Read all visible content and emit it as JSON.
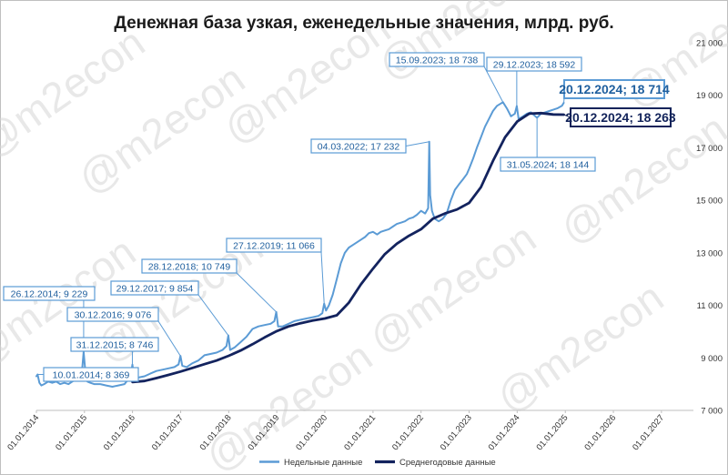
{
  "watermark": "@m2econ",
  "chart_data": {
    "type": "line",
    "title": "Денежная база узкая, еженедельные значения, млрд. руб.",
    "xlabel": "",
    "ylabel": "",
    "xlim": [
      "2014-01-01",
      "2027-09-01"
    ],
    "ylim": [
      7000,
      21000
    ],
    "y_ticks": [
      7000,
      9000,
      11000,
      13000,
      15000,
      17000,
      19000,
      21000
    ],
    "y_tick_labels": [
      "7 000",
      "9 000",
      "11 000",
      "13 000",
      "15 000",
      "17 000",
      "19 000",
      "21 000"
    ],
    "x_ticks": [
      "2014-01-01",
      "2015-01-01",
      "2016-01-01",
      "2017-01-01",
      "2018-01-01",
      "2019-01-01",
      "2020-01-01",
      "2021-01-01",
      "2022-01-01",
      "2023-01-01",
      "2024-01-01",
      "2025-01-01",
      "2026-01-01",
      "2027-01-01"
    ],
    "x_tick_labels": [
      "01.01.2014",
      "01.01.2015",
      "01.01.2016",
      "01.01.2017",
      "01.01.2018",
      "01.01.2019",
      "01.01.2020",
      "01.01.2021",
      "01.01.2022",
      "01.01.2023",
      "01.01.2024",
      "01.01.2025",
      "01.01.2026",
      "01.01.2027"
    ],
    "grid": false,
    "legend_position": "bottom",
    "series": [
      {
        "name": "Недельные данные",
        "color": "#5b9bd5",
        "points": [
          [
            "2014-01-01",
            8300
          ],
          [
            "2014-01-10",
            8369
          ],
          [
            "2014-01-24",
            8050
          ],
          [
            "2014-02-07",
            7950
          ],
          [
            "2014-03-01",
            8000
          ],
          [
            "2014-04-01",
            8100
          ],
          [
            "2014-05-01",
            8050
          ],
          [
            "2014-06-01",
            8100
          ],
          [
            "2014-07-01",
            8000
          ],
          [
            "2014-08-01",
            8050
          ],
          [
            "2014-09-01",
            8000
          ],
          [
            "2014-10-01",
            8100
          ],
          [
            "2014-11-01",
            8200
          ],
          [
            "2014-12-12",
            8400
          ],
          [
            "2014-12-26",
            9229
          ],
          [
            "2015-01-09",
            8400
          ],
          [
            "2015-01-23",
            8100
          ],
          [
            "2015-02-15",
            8050
          ],
          [
            "2015-03-15",
            8000
          ],
          [
            "2015-05-01",
            8000
          ],
          [
            "2015-06-15",
            7950
          ],
          [
            "2015-08-01",
            7900
          ],
          [
            "2015-09-15",
            7950
          ],
          [
            "2015-11-01",
            8000
          ],
          [
            "2015-12-18",
            8300
          ],
          [
            "2015-12-31",
            8746
          ],
          [
            "2016-01-15",
            8200
          ],
          [
            "2016-02-15",
            8250
          ],
          [
            "2016-04-01",
            8300
          ],
          [
            "2016-05-15",
            8400
          ],
          [
            "2016-07-01",
            8500
          ],
          [
            "2016-08-15",
            8550
          ],
          [
            "2016-10-01",
            8600
          ],
          [
            "2016-11-15",
            8650
          ],
          [
            "2016-12-16",
            8750
          ],
          [
            "2016-12-30",
            9076
          ],
          [
            "2017-01-13",
            8700
          ],
          [
            "2017-02-15",
            8650
          ],
          [
            "2017-04-01",
            8800
          ],
          [
            "2017-05-15",
            8900
          ],
          [
            "2017-07-01",
            9100
          ],
          [
            "2017-08-15",
            9150
          ],
          [
            "2017-10-01",
            9200
          ],
          [
            "2017-11-15",
            9300
          ],
          [
            "2017-12-15",
            9450
          ],
          [
            "2017-12-29",
            9854
          ],
          [
            "2018-01-12",
            9300
          ],
          [
            "2018-02-15",
            9400
          ],
          [
            "2018-04-01",
            9600
          ],
          [
            "2018-05-15",
            9800
          ],
          [
            "2018-07-01",
            10100
          ],
          [
            "2018-08-15",
            10200
          ],
          [
            "2018-10-01",
            10250
          ],
          [
            "2018-11-15",
            10300
          ],
          [
            "2018-12-14",
            10400
          ],
          [
            "2018-12-28",
            10749
          ],
          [
            "2019-01-11",
            10200
          ],
          [
            "2019-02-15",
            10200
          ],
          [
            "2019-04-01",
            10300
          ],
          [
            "2019-05-15",
            10400
          ],
          [
            "2019-07-01",
            10450
          ],
          [
            "2019-08-15",
            10500
          ],
          [
            "2019-10-01",
            10550
          ],
          [
            "2019-11-15",
            10600
          ],
          [
            "2019-12-13",
            10700
          ],
          [
            "2019-12-27",
            11066
          ],
          [
            "2020-01-10",
            10800
          ],
          [
            "2020-02-01",
            11000
          ],
          [
            "2020-03-01",
            11400
          ],
          [
            "2020-04-01",
            12000
          ],
          [
            "2020-05-01",
            12600
          ],
          [
            "2020-06-01",
            13000
          ],
          [
            "2020-07-01",
            13200
          ],
          [
            "2020-08-01",
            13300
          ],
          [
            "2020-09-01",
            13400
          ],
          [
            "2020-10-01",
            13500
          ],
          [
            "2020-11-01",
            13600
          ],
          [
            "2020-12-01",
            13750
          ],
          [
            "2021-01-01",
            13800
          ],
          [
            "2021-02-01",
            13700
          ],
          [
            "2021-03-01",
            13800
          ],
          [
            "2021-04-01",
            13850
          ],
          [
            "2021-05-01",
            13900
          ],
          [
            "2021-06-01",
            14000
          ],
          [
            "2021-07-01",
            14100
          ],
          [
            "2021-08-01",
            14150
          ],
          [
            "2021-09-01",
            14200
          ],
          [
            "2021-10-01",
            14300
          ],
          [
            "2021-11-01",
            14350
          ],
          [
            "2021-12-01",
            14450
          ],
          [
            "2022-01-01",
            14600
          ],
          [
            "2022-02-01",
            14500
          ],
          [
            "2022-02-24",
            14700
          ],
          [
            "2022-03-04",
            17232
          ],
          [
            "2022-03-11",
            15200
          ],
          [
            "2022-03-25",
            14600
          ],
          [
            "2022-04-15",
            14300
          ],
          [
            "2022-05-15",
            14200
          ],
          [
            "2022-06-15",
            14300
          ],
          [
            "2022-07-15",
            14500
          ],
          [
            "2022-08-15",
            15000
          ],
          [
            "2022-09-15",
            15400
          ],
          [
            "2022-10-15",
            15600
          ],
          [
            "2022-11-15",
            15800
          ],
          [
            "2022-12-15",
            16000
          ],
          [
            "2023-01-01",
            16200
          ],
          [
            "2023-02-01",
            16600
          ],
          [
            "2023-03-01",
            17000
          ],
          [
            "2023-04-01",
            17400
          ],
          [
            "2023-05-01",
            17800
          ],
          [
            "2023-06-01",
            18100
          ],
          [
            "2023-07-01",
            18400
          ],
          [
            "2023-08-01",
            18600
          ],
          [
            "2023-09-15",
            18738
          ],
          [
            "2023-10-15",
            18500
          ],
          [
            "2023-11-15",
            18200
          ],
          [
            "2023-12-15",
            18300
          ],
          [
            "2023-12-29",
            18592
          ],
          [
            "2024-01-12",
            18100
          ],
          [
            "2024-02-15",
            18200
          ],
          [
            "2024-03-15",
            18300
          ],
          [
            "2024-04-15",
            18350
          ],
          [
            "2024-05-31",
            18144
          ],
          [
            "2024-06-30",
            18300
          ],
          [
            "2024-08-01",
            18350
          ],
          [
            "2024-09-01",
            18400
          ],
          [
            "2024-10-01",
            18450
          ],
          [
            "2024-11-01",
            18500
          ],
          [
            "2024-12-06",
            18600
          ],
          [
            "2024-12-20",
            18714
          ]
        ]
      },
      {
        "name": "Среднегодовые данные",
        "color": "#13235e",
        "points": [
          [
            "2016-01-01",
            8080
          ],
          [
            "2016-04-01",
            8120
          ],
          [
            "2016-07-01",
            8230
          ],
          [
            "2016-10-01",
            8350
          ],
          [
            "2017-01-01",
            8480
          ],
          [
            "2017-04-01",
            8620
          ],
          [
            "2017-07-01",
            8760
          ],
          [
            "2017-10-01",
            8900
          ],
          [
            "2018-01-01",
            9080
          ],
          [
            "2018-04-01",
            9280
          ],
          [
            "2018-07-01",
            9520
          ],
          [
            "2018-10-01",
            9780
          ],
          [
            "2019-01-01",
            10020
          ],
          [
            "2019-04-01",
            10200
          ],
          [
            "2019-07-01",
            10320
          ],
          [
            "2019-10-01",
            10420
          ],
          [
            "2020-01-01",
            10500
          ],
          [
            "2020-04-01",
            10620
          ],
          [
            "2020-07-01",
            11100
          ],
          [
            "2020-10-01",
            11800
          ],
          [
            "2021-01-01",
            12400
          ],
          [
            "2021-04-01",
            12950
          ],
          [
            "2021-07-01",
            13350
          ],
          [
            "2021-10-01",
            13650
          ],
          [
            "2022-01-01",
            13900
          ],
          [
            "2022-04-01",
            14300
          ],
          [
            "2022-07-01",
            14500
          ],
          [
            "2022-10-01",
            14650
          ],
          [
            "2023-01-01",
            14900
          ],
          [
            "2023-04-01",
            15500
          ],
          [
            "2023-07-01",
            16500
          ],
          [
            "2023-10-01",
            17400
          ],
          [
            "2024-01-01",
            18000
          ],
          [
            "2024-04-01",
            18300
          ],
          [
            "2024-07-01",
            18320
          ],
          [
            "2024-10-01",
            18270
          ],
          [
            "2024-12-20",
            18263
          ]
        ]
      }
    ],
    "annotations": [
      {
        "label": "10.01.2014; 8 369",
        "style": "small",
        "target": [
          "2014-01-10",
          8369
        ]
      },
      {
        "label": "26.12.2014; 9 229",
        "style": "small",
        "target": [
          "2014-12-26",
          9229
        ]
      },
      {
        "label": "31.12.2015; 8 746",
        "style": "small",
        "target": [
          "2015-12-31",
          8746
        ]
      },
      {
        "label": "30.12.2016; 9 076",
        "style": "small",
        "target": [
          "2016-12-30",
          9076
        ]
      },
      {
        "label": "29.12.2017; 9 854",
        "style": "small",
        "target": [
          "2017-12-29",
          9854
        ]
      },
      {
        "label": "28.12.2018; 10 749",
        "style": "small",
        "target": [
          "2018-12-28",
          10749
        ]
      },
      {
        "label": "27.12.2019; 11 066",
        "style": "small",
        "target": [
          "2019-12-27",
          11066
        ]
      },
      {
        "label": "04.03.2022; 17 232",
        "style": "small",
        "target": [
          "2022-03-04",
          17232
        ]
      },
      {
        "label": "15.09.2023; 18 738",
        "style": "small",
        "target": [
          "2023-09-15",
          18738
        ]
      },
      {
        "label": "29.12.2023; 18 592",
        "style": "small",
        "target": [
          "2023-12-29",
          18592
        ]
      },
      {
        "label": "31.05.2024; 18 144",
        "style": "small",
        "target": [
          "2024-05-31",
          18144
        ]
      },
      {
        "label": "20.12.2024; 18 714",
        "style": "big",
        "target": [
          "2024-12-20",
          18714
        ]
      },
      {
        "label": "20.12.2024; 18 263",
        "style": "big-dark",
        "target": [
          "2024-12-20",
          18263
        ]
      }
    ]
  }
}
